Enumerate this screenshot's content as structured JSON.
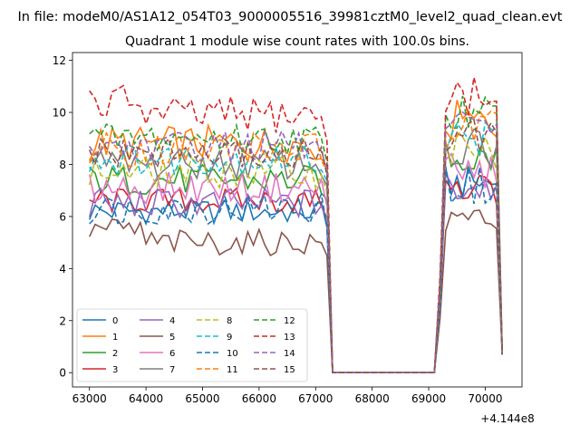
{
  "figure": {
    "suptitle": "In file: modeM0/AS1A12_054T03_9000005516_39981cztM0_level2_quad_clean.evt"
  },
  "chart_data": {
    "type": "line",
    "title": "Quadrant 1 module wise count rates with 100.0s bins.",
    "xlabel": "",
    "ylabel": "",
    "x_offset_label": "+4.144e8",
    "xlim": [
      62700,
      70650
    ],
    "ylim": [
      -0.55,
      12.3
    ],
    "xticks": [
      63000,
      64000,
      65000,
      66000,
      67000,
      68000,
      69000,
      70000
    ],
    "xtick_labels": [
      "63000",
      "64000",
      "65000",
      "66000",
      "67000",
      "68000",
      "69000",
      "70000"
    ],
    "yticks": [
      0,
      2,
      4,
      6,
      8,
      10,
      12
    ],
    "ytick_labels": [
      "0",
      "2",
      "4",
      "6",
      "8",
      "10",
      "12"
    ],
    "grid": false,
    "legend": {
      "placement": "lower-left",
      "ncol": 4
    },
    "x_note": "time bins of 100 s; data gap from 67300 to 69100 where all modules read 0; final bin near 70300 drops to about 0.7",
    "series": [
      {
        "name": "0",
        "color": "#1f77b4",
        "style": "solid",
        "mean": 6.2,
        "spread": 0.25,
        "burst": 7.3
      },
      {
        "name": "1",
        "color": "#ff7f0e",
        "style": "solid",
        "mean": 8.8,
        "spread": 0.35,
        "burst": 9.6
      },
      {
        "name": "2",
        "color": "#2ca02c",
        "style": "solid",
        "mean": 7.4,
        "spread": 0.3,
        "burst": 8.2
      },
      {
        "name": "3",
        "color": "#d62728",
        "style": "solid",
        "mean": 6.6,
        "spread": 0.25,
        "burst": 7.0
      },
      {
        "name": "4",
        "color": "#9467bd",
        "style": "solid",
        "mean": 6.5,
        "spread": 0.3,
        "burst": 7.1
      },
      {
        "name": "5",
        "color": "#8c564b",
        "style": "solid",
        "mean": 5.0,
        "spread": 0.25,
        "burst": 5.9
      },
      {
        "name": "6",
        "color": "#e377c2",
        "style": "solid",
        "mean": 7.1,
        "spread": 0.3,
        "burst": 7.7
      },
      {
        "name": "7",
        "color": "#7f7f7f",
        "style": "solid",
        "mean": 8.0,
        "spread": 0.3,
        "burst": 8.6
      },
      {
        "name": "8",
        "color": "#bcbd22",
        "style": "dashed",
        "mean": 7.7,
        "spread": 0.3,
        "burst": 8.5
      },
      {
        "name": "9",
        "color": "#17becf",
        "style": "dashed",
        "mean": 8.2,
        "spread": 0.3,
        "burst": 9.0
      },
      {
        "name": "10",
        "color": "#1f77b4",
        "style": "dashed",
        "mean": 6.3,
        "spread": 0.3,
        "burst": 7.2
      },
      {
        "name": "11",
        "color": "#ff7f0e",
        "style": "dashed",
        "mean": 8.6,
        "spread": 0.35,
        "burst": 9.4
      },
      {
        "name": "12",
        "color": "#2ca02c",
        "style": "dashed",
        "mean": 9.0,
        "spread": 0.3,
        "burst": 9.9
      },
      {
        "name": "13",
        "color": "#d62728",
        "style": "dashed",
        "mean": 9.9,
        "spread": 0.35,
        "burst": 10.6
      },
      {
        "name": "14",
        "color": "#9467bd",
        "style": "dashed",
        "mean": 8.7,
        "spread": 0.3,
        "burst": 9.5
      },
      {
        "name": "15",
        "color": "#8c564b",
        "style": "dashed",
        "mean": 8.4,
        "spread": 0.3,
        "burst": 9.2
      }
    ]
  }
}
